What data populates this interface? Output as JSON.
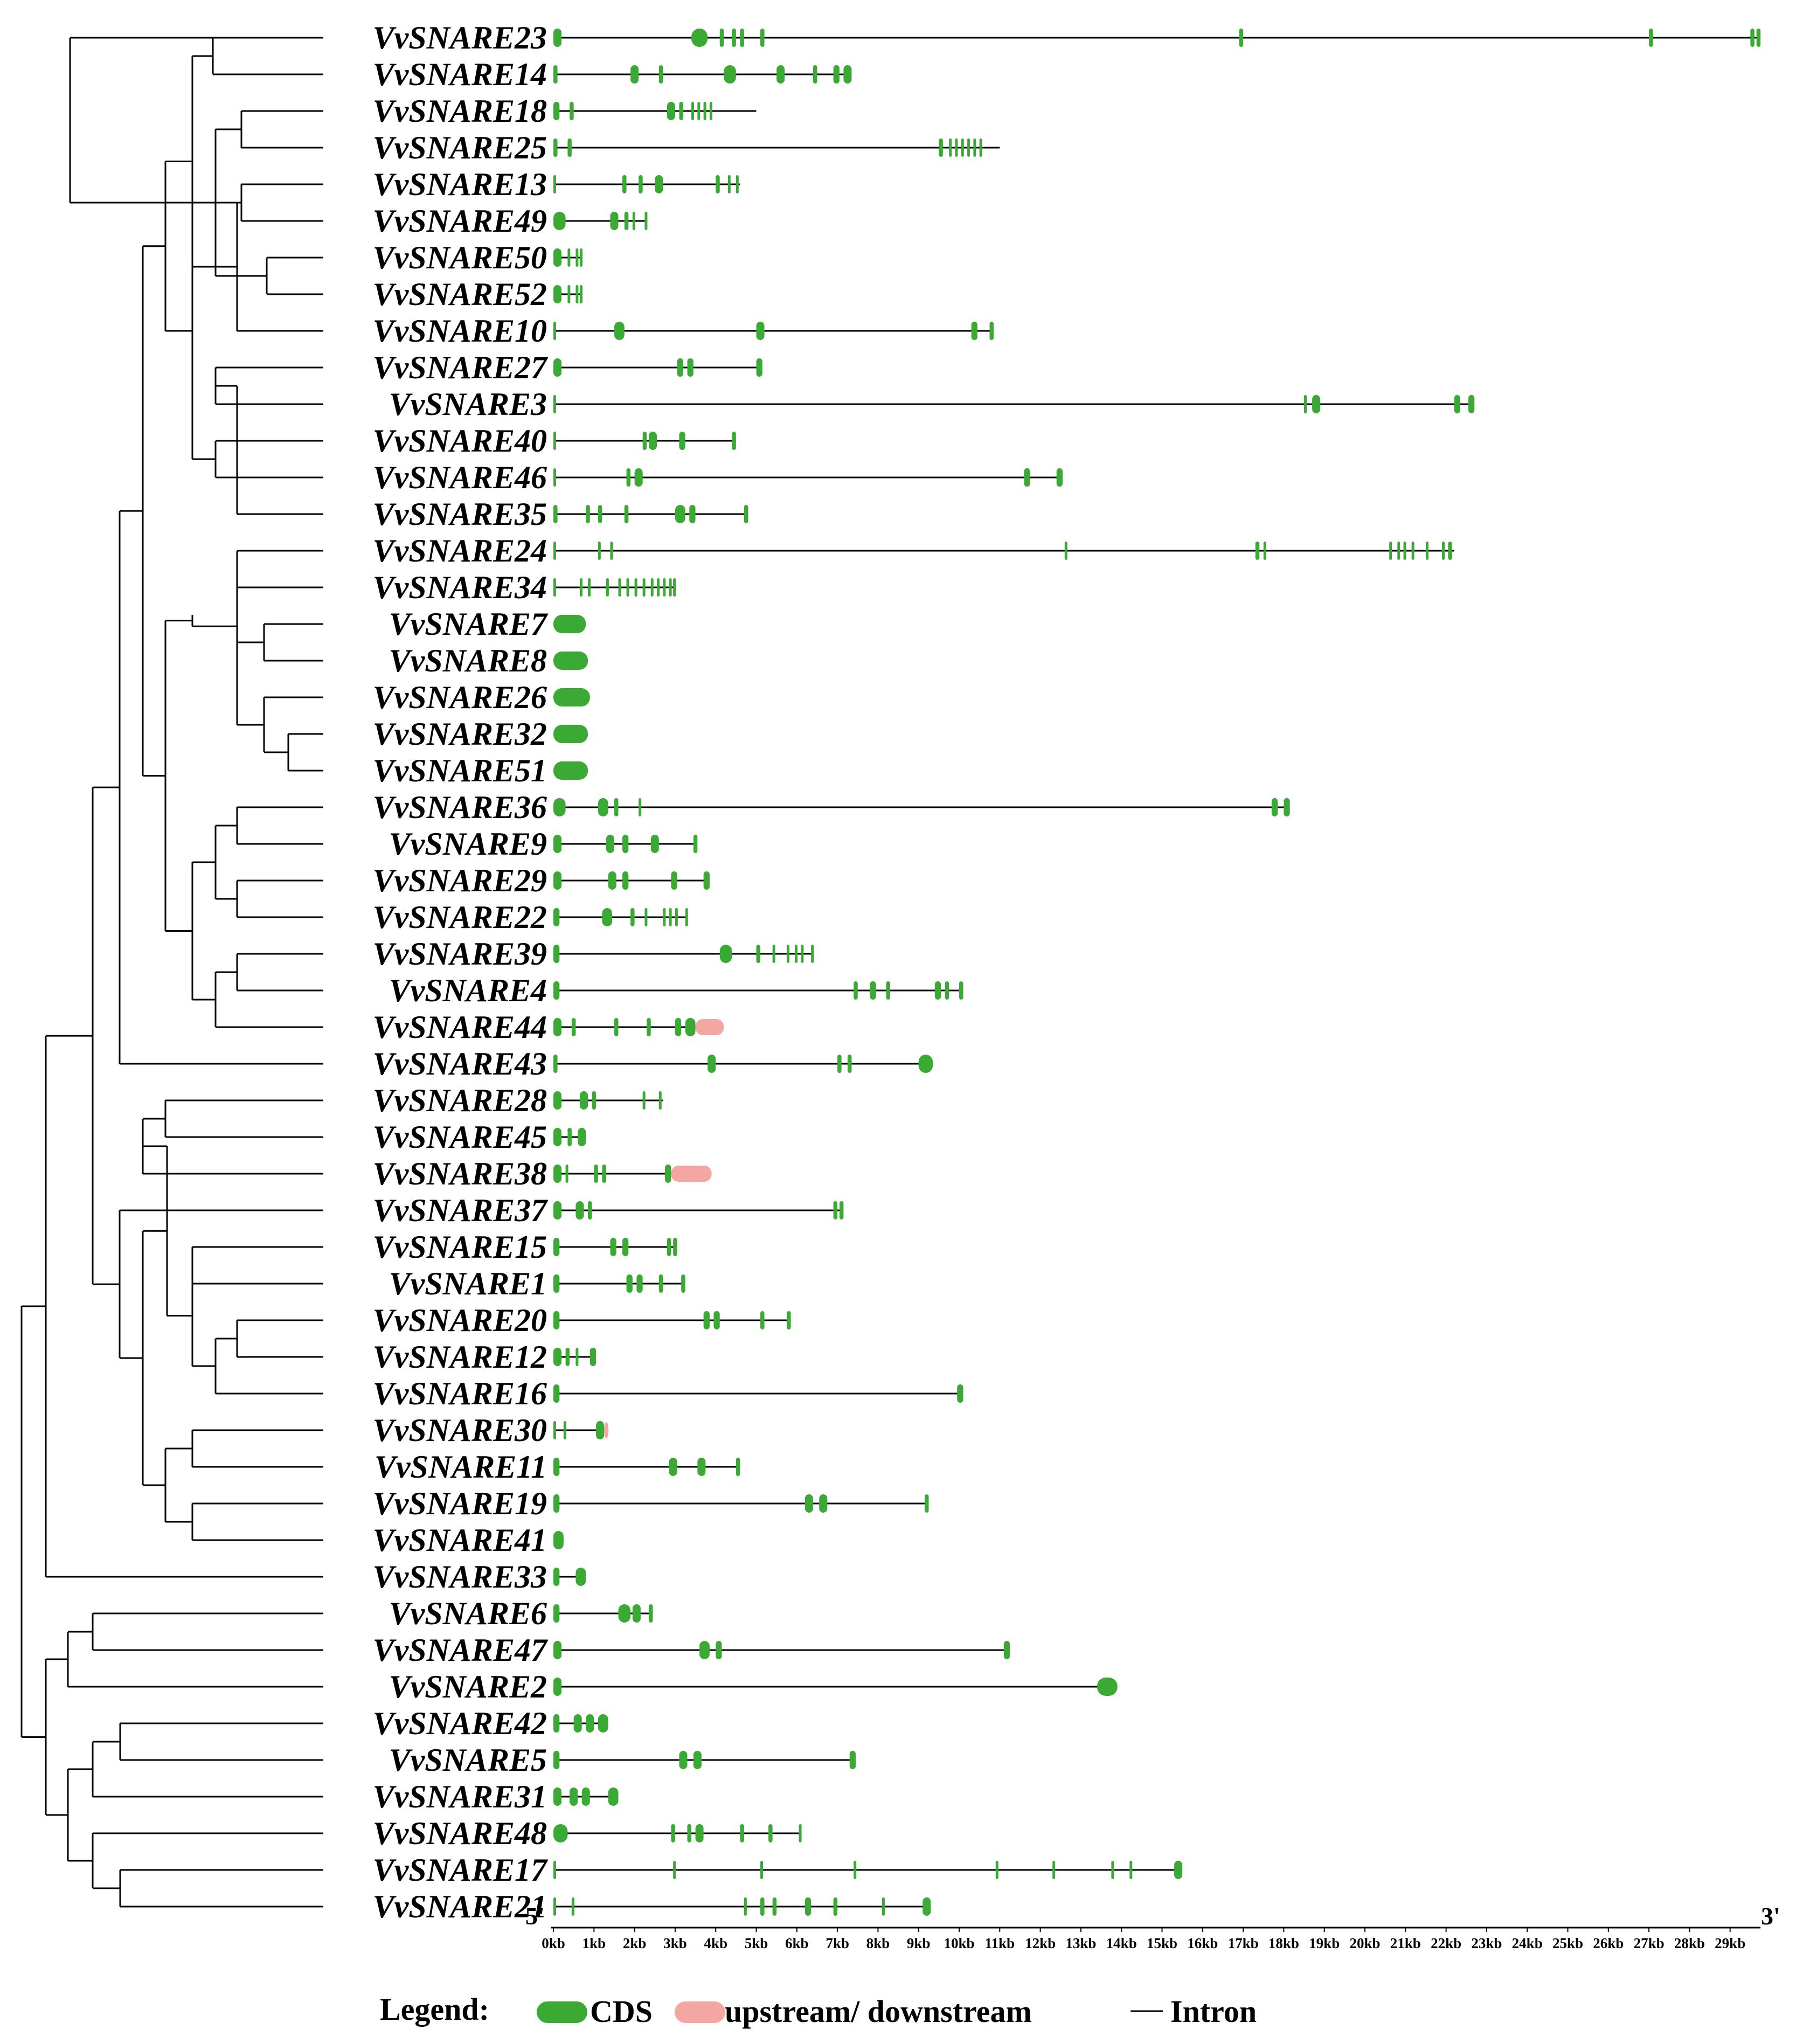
{
  "colors": {
    "cds": "#3aaa35",
    "utr": "#f4a6a2",
    "line": "#000000"
  },
  "end_labels": {
    "five": "5'",
    "three": "3'"
  },
  "axis_ticks": [
    "0kb",
    "1kb",
    "2kb",
    "3kb",
    "4kb",
    "5kb",
    "6kb",
    "7kb",
    "8kb",
    "9kb",
    "10kb",
    "11kb",
    "12kb",
    "13kb",
    "14kb",
    "15kb",
    "16kb",
    "17kb",
    "18kb",
    "19kb",
    "20kb",
    "21kb",
    "22kb",
    "23kb",
    "24kb",
    "25kb",
    "26kb",
    "27kb",
    "28kb",
    "29kb"
  ],
  "legend": {
    "title": "Legend:",
    "cds": "CDS",
    "utr": "upstream/ downstream",
    "intron": "Intron"
  },
  "genes": [
    {
      "name": "VvSNARE23",
      "length": 29.7,
      "cds": [
        [
          0,
          0.2
        ],
        [
          3.4,
          3.8
        ],
        [
          4.1,
          4.2
        ],
        [
          4.4,
          4.5
        ],
        [
          4.6,
          4.7
        ],
        [
          5.1,
          5.2
        ],
        [
          16.9,
          17.0
        ],
        [
          27.0,
          27.1
        ],
        [
          29.5,
          29.6
        ],
        [
          29.65,
          29.75
        ]
      ],
      "utr": []
    },
    {
      "name": "VvSNARE14",
      "length": 7.3,
      "cds": [
        [
          0,
          0.1
        ],
        [
          1.9,
          2.1
        ],
        [
          2.6,
          2.7
        ],
        [
          4.2,
          4.5
        ],
        [
          5.5,
          5.7
        ],
        [
          6.4,
          6.5
        ],
        [
          6.9,
          7.05
        ],
        [
          7.15,
          7.35
        ]
      ],
      "utr": []
    },
    {
      "name": "VvSNARE18",
      "length": 5.0,
      "cds": [
        [
          0,
          0.15
        ],
        [
          0.4,
          0.5
        ],
        [
          2.8,
          3.0
        ],
        [
          3.1,
          3.2
        ],
        [
          3.4,
          3.45
        ],
        [
          3.55,
          3.6
        ],
        [
          3.7,
          3.75
        ],
        [
          3.85,
          3.9
        ]
      ],
      "utr": []
    },
    {
      "name": "VvSNARE25",
      "length": 11.0,
      "cds": [
        [
          0,
          0.1
        ],
        [
          0.35,
          0.45
        ],
        [
          9.5,
          9.6
        ],
        [
          9.75,
          9.8
        ],
        [
          9.9,
          9.95
        ],
        [
          10.05,
          10.1
        ],
        [
          10.2,
          10.25
        ],
        [
          10.35,
          10.4
        ],
        [
          10.5,
          10.55
        ]
      ],
      "utr": []
    },
    {
      "name": "VvSNARE13",
      "length": 4.6,
      "cds": [
        [
          0,
          0.05
        ],
        [
          1.7,
          1.8
        ],
        [
          2.1,
          2.2
        ],
        [
          2.5,
          2.7
        ],
        [
          4.0,
          4.1
        ],
        [
          4.3,
          4.35
        ],
        [
          4.5,
          4.55
        ]
      ],
      "utr": []
    },
    {
      "name": "VvSNARE49",
      "length": 2.3,
      "cds": [
        [
          0,
          0.3
        ],
        [
          1.4,
          1.6
        ],
        [
          1.75,
          1.85
        ],
        [
          1.95,
          2.0
        ],
        [
          2.25,
          2.3
        ]
      ],
      "utr": []
    },
    {
      "name": "VvSNARE50",
      "length": 0.7,
      "cds": [
        [
          0,
          0.2
        ],
        [
          0.35,
          0.4
        ],
        [
          0.55,
          0.6
        ],
        [
          0.65,
          0.7
        ]
      ],
      "utr": []
    },
    {
      "name": "VvSNARE52",
      "length": 0.7,
      "cds": [
        [
          0,
          0.2
        ],
        [
          0.35,
          0.4
        ],
        [
          0.55,
          0.6
        ],
        [
          0.65,
          0.7
        ]
      ],
      "utr": []
    },
    {
      "name": "VvSNARE10",
      "length": 10.8,
      "cds": [
        [
          0,
          0.05
        ],
        [
          1.5,
          1.75
        ],
        [
          5.0,
          5.2
        ],
        [
          10.3,
          10.45
        ],
        [
          10.75,
          10.85
        ]
      ],
      "utr": []
    },
    {
      "name": "VvSNARE27",
      "length": 5.1,
      "cds": [
        [
          0,
          0.2
        ],
        [
          3.05,
          3.2
        ],
        [
          3.3,
          3.45
        ],
        [
          5.0,
          5.15
        ]
      ],
      "utr": []
    },
    {
      "name": "VvSNARE3",
      "length": 22.6,
      "cds": [
        [
          0,
          0.05
        ],
        [
          18.5,
          18.55
        ],
        [
          18.7,
          18.9
        ],
        [
          22.2,
          22.35
        ],
        [
          22.55,
          22.7
        ]
      ],
      "utr": []
    },
    {
      "name": "VvSNARE40",
      "length": 4.5,
      "cds": [
        [
          0,
          0.05
        ],
        [
          2.2,
          2.3
        ],
        [
          2.35,
          2.55
        ],
        [
          3.1,
          3.25
        ],
        [
          4.4,
          4.5
        ]
      ],
      "utr": []
    },
    {
      "name": "VvSNARE46",
      "length": 12.5,
      "cds": [
        [
          0,
          0.05
        ],
        [
          1.8,
          1.9
        ],
        [
          2.0,
          2.2
        ],
        [
          11.6,
          11.75
        ],
        [
          12.4,
          12.55
        ]
      ],
      "utr": []
    },
    {
      "name": "VvSNARE35",
      "length": 4.8,
      "cds": [
        [
          0,
          0.1
        ],
        [
          0.8,
          0.9
        ],
        [
          1.1,
          1.2
        ],
        [
          1.75,
          1.85
        ],
        [
          3.0,
          3.25
        ],
        [
          3.35,
          3.5
        ],
        [
          4.7,
          4.8
        ]
      ],
      "utr": []
    },
    {
      "name": "VvSNARE24",
      "length": 22.2,
      "cds": [
        [
          0,
          0.05
        ],
        [
          1.1,
          1.15
        ],
        [
          1.4,
          1.45
        ],
        [
          12.6,
          12.65
        ],
        [
          17.3,
          17.4
        ],
        [
          17.5,
          17.55
        ],
        [
          20.6,
          20.65
        ],
        [
          20.8,
          20.85
        ],
        [
          20.95,
          21.0
        ],
        [
          21.15,
          21.2
        ],
        [
          21.5,
          21.55
        ],
        [
          21.9,
          21.95
        ],
        [
          22.05,
          22.15
        ]
      ],
      "utr": []
    },
    {
      "name": "VvSNARE34",
      "length": 3.0,
      "cds": [
        [
          0,
          0.05
        ],
        [
          0.65,
          0.7
        ],
        [
          0.85,
          0.9
        ],
        [
          1.3,
          1.35
        ],
        [
          1.6,
          1.65
        ],
        [
          1.8,
          1.85
        ],
        [
          2.0,
          2.05
        ],
        [
          2.2,
          2.25
        ],
        [
          2.4,
          2.45
        ],
        [
          2.55,
          2.6
        ],
        [
          2.7,
          2.75
        ],
        [
          2.85,
          2.9
        ],
        [
          2.95,
          3.0
        ]
      ],
      "utr": []
    },
    {
      "name": "VvSNARE7",
      "length": 0.8,
      "cds": [
        [
          0,
          0.8
        ]
      ],
      "utr": []
    },
    {
      "name": "VvSNARE8",
      "length": 0.85,
      "cds": [
        [
          0,
          0.85
        ]
      ],
      "utr": []
    },
    {
      "name": "VvSNARE26",
      "length": 0.9,
      "cds": [
        [
          0,
          0.9
        ]
      ],
      "utr": []
    },
    {
      "name": "VvSNARE32",
      "length": 0.85,
      "cds": [
        [
          0,
          0.85
        ]
      ],
      "utr": []
    },
    {
      "name": "VvSNARE51",
      "length": 0.85,
      "cds": [
        [
          0,
          0.85
        ]
      ],
      "utr": []
    },
    {
      "name": "VvSNARE36",
      "length": 18.1,
      "cds": [
        [
          0,
          0.3
        ],
        [
          1.1,
          1.35
        ],
        [
          1.5,
          1.6
        ],
        [
          2.1,
          2.15
        ],
        [
          17.7,
          17.85
        ],
        [
          18.0,
          18.15
        ]
      ],
      "utr": []
    },
    {
      "name": "VvSNARE9",
      "length": 3.5,
      "cds": [
        [
          0,
          0.2
        ],
        [
          1.3,
          1.5
        ],
        [
          1.7,
          1.85
        ],
        [
          2.4,
          2.6
        ],
        [
          3.45,
          3.55
        ]
      ],
      "utr": []
    },
    {
      "name": "VvSNARE29",
      "length": 3.8,
      "cds": [
        [
          0,
          0.2
        ],
        [
          1.35,
          1.55
        ],
        [
          1.7,
          1.85
        ],
        [
          2.9,
          3.05
        ],
        [
          3.7,
          3.85
        ]
      ],
      "utr": []
    },
    {
      "name": "VvSNARE22",
      "length": 3.3,
      "cds": [
        [
          0,
          0.15
        ],
        [
          1.2,
          1.45
        ],
        [
          1.9,
          2.0
        ],
        [
          2.25,
          2.3
        ],
        [
          2.7,
          2.75
        ],
        [
          2.85,
          2.9
        ],
        [
          3.0,
          3.05
        ],
        [
          3.25,
          3.3
        ]
      ],
      "utr": []
    },
    {
      "name": "VvSNARE39",
      "length": 6.4,
      "cds": [
        [
          0,
          0.15
        ],
        [
          4.1,
          4.4
        ],
        [
          5.0,
          5.1
        ],
        [
          5.4,
          5.45
        ],
        [
          5.75,
          5.8
        ],
        [
          5.95,
          6.0
        ],
        [
          6.1,
          6.15
        ],
        [
          6.35,
          6.4
        ]
      ],
      "utr": []
    },
    {
      "name": "VvSNARE4",
      "length": 10.1,
      "cds": [
        [
          0,
          0.15
        ],
        [
          7.4,
          7.5
        ],
        [
          7.8,
          7.95
        ],
        [
          8.2,
          8.3
        ],
        [
          9.4,
          9.55
        ],
        [
          9.65,
          9.75
        ],
        [
          10.0,
          10.1
        ]
      ],
      "utr": []
    },
    {
      "name": "VvSNARE44",
      "length": 3.5,
      "cds": [
        [
          0,
          0.2
        ],
        [
          0.45,
          0.55
        ],
        [
          1.5,
          1.6
        ],
        [
          2.3,
          2.4
        ],
        [
          3.0,
          3.15
        ],
        [
          3.25,
          3.5
        ]
      ],
      "utr": [
        [
          3.5,
          4.2
        ]
      ]
    },
    {
      "name": "VvSNARE43",
      "length": 9.3,
      "cds": [
        [
          0,
          0.1
        ],
        [
          3.8,
          4.0
        ],
        [
          7.0,
          7.1
        ],
        [
          7.25,
          7.35
        ],
        [
          9.0,
          9.35
        ]
      ],
      "utr": []
    },
    {
      "name": "VvSNARE28",
      "length": 2.7,
      "cds": [
        [
          0,
          0.2
        ],
        [
          0.65,
          0.85
        ],
        [
          0.95,
          1.05
        ],
        [
          2.2,
          2.25
        ],
        [
          2.6,
          2.65
        ]
      ],
      "utr": []
    },
    {
      "name": "VvSNARE45",
      "length": 0.8,
      "cds": [
        [
          0,
          0.2
        ],
        [
          0.35,
          0.45
        ],
        [
          0.6,
          0.8
        ]
      ],
      "utr": []
    },
    {
      "name": "VvSNARE38",
      "length": 2.9,
      "cds": [
        [
          0,
          0.2
        ],
        [
          0.3,
          0.35
        ],
        [
          1.0,
          1.1
        ],
        [
          1.2,
          1.3
        ],
        [
          2.75,
          2.9
        ]
      ],
      "utr": [
        [
          2.9,
          3.9
        ]
      ]
    },
    {
      "name": "VvSNARE37",
      "length": 7.1,
      "cds": [
        [
          0,
          0.2
        ],
        [
          0.55,
          0.75
        ],
        [
          0.85,
          0.95
        ],
        [
          6.9,
          7.0
        ],
        [
          7.05,
          7.15
        ]
      ],
      "utr": []
    },
    {
      "name": "VvSNARE15",
      "length": 3.0,
      "cds": [
        [
          0,
          0.15
        ],
        [
          1.4,
          1.55
        ],
        [
          1.7,
          1.85
        ],
        [
          2.8,
          2.9
        ],
        [
          2.95,
          3.05
        ]
      ],
      "utr": []
    },
    {
      "name": "VvSNARE1",
      "length": 3.2,
      "cds": [
        [
          0,
          0.15
        ],
        [
          1.8,
          1.95
        ],
        [
          2.05,
          2.2
        ],
        [
          2.6,
          2.7
        ],
        [
          3.15,
          3.25
        ]
      ],
      "utr": []
    },
    {
      "name": "VvSNARE20",
      "length": 5.8,
      "cds": [
        [
          0,
          0.15
        ],
        [
          3.7,
          3.85
        ],
        [
          3.95,
          4.1
        ],
        [
          5.1,
          5.2
        ],
        [
          5.75,
          5.85
        ]
      ],
      "utr": []
    },
    {
      "name": "VvSNARE12",
      "length": 1.0,
      "cds": [
        [
          0,
          0.2
        ],
        [
          0.3,
          0.4
        ],
        [
          0.55,
          0.6
        ],
        [
          0.9,
          1.05
        ]
      ],
      "utr": []
    },
    {
      "name": "VvSNARE16",
      "length": 10.0,
      "cds": [
        [
          0,
          0.15
        ],
        [
          9.95,
          10.1
        ]
      ],
      "utr": []
    },
    {
      "name": "VvSNARE30",
      "length": 1.2,
      "cds": [
        [
          0,
          0.05
        ],
        [
          0.25,
          0.3
        ],
        [
          1.05,
          1.25
        ]
      ],
      "utr": [
        [
          1.25,
          1.35
        ]
      ]
    },
    {
      "name": "VvSNARE11",
      "length": 4.6,
      "cds": [
        [
          0,
          0.15
        ],
        [
          2.85,
          3.05
        ],
        [
          3.55,
          3.75
        ],
        [
          4.5,
          4.6
        ]
      ],
      "utr": []
    },
    {
      "name": "VvSNARE19",
      "length": 9.2,
      "cds": [
        [
          0,
          0.15
        ],
        [
          6.2,
          6.4
        ],
        [
          6.55,
          6.75
        ],
        [
          9.15,
          9.25
        ]
      ],
      "utr": []
    },
    {
      "name": "VvSNARE41",
      "length": 0.25,
      "cds": [
        [
          0,
          0.25
        ]
      ],
      "utr": []
    },
    {
      "name": "VvSNARE33",
      "length": 0.7,
      "cds": [
        [
          0,
          0.15
        ],
        [
          0.55,
          0.8
        ]
      ],
      "utr": []
    },
    {
      "name": "VvSNARE6",
      "length": 2.4,
      "cds": [
        [
          0,
          0.15
        ],
        [
          1.6,
          1.9
        ],
        [
          1.95,
          2.15
        ],
        [
          2.35,
          2.45
        ]
      ],
      "utr": []
    },
    {
      "name": "VvSNARE47",
      "length": 11.2,
      "cds": [
        [
          0,
          0.2
        ],
        [
          3.6,
          3.85
        ],
        [
          4.0,
          4.15
        ],
        [
          11.1,
          11.25
        ]
      ],
      "utr": []
    },
    {
      "name": "VvSNARE2",
      "length": 13.8,
      "cds": [
        [
          0,
          0.2
        ],
        [
          13.4,
          13.9
        ]
      ],
      "utr": []
    },
    {
      "name": "VvSNARE42",
      "length": 1.3,
      "cds": [
        [
          0,
          0.15
        ],
        [
          0.5,
          0.7
        ],
        [
          0.8,
          1.0
        ],
        [
          1.1,
          1.35
        ]
      ],
      "utr": []
    },
    {
      "name": "VvSNARE5",
      "length": 7.4,
      "cds": [
        [
          0,
          0.15
        ],
        [
          3.1,
          3.3
        ],
        [
          3.45,
          3.65
        ],
        [
          7.3,
          7.45
        ]
      ],
      "utr": []
    },
    {
      "name": "VvSNARE31",
      "length": 1.6,
      "cds": [
        [
          0,
          0.2
        ],
        [
          0.4,
          0.6
        ],
        [
          0.7,
          0.9
        ],
        [
          1.35,
          1.6
        ]
      ],
      "utr": []
    },
    {
      "name": "VvSNARE48",
      "length": 6.1,
      "cds": [
        [
          0,
          0.35
        ],
        [
          2.9,
          3.0
        ],
        [
          3.3,
          3.4
        ],
        [
          3.5,
          3.7
        ],
        [
          4.6,
          4.7
        ],
        [
          5.3,
          5.4
        ],
        [
          6.05,
          6.1
        ]
      ],
      "utr": []
    },
    {
      "name": "VvSNARE17",
      "length": 15.5,
      "cds": [
        [
          0,
          0.05
        ],
        [
          2.95,
          3.0
        ],
        [
          5.1,
          5.15
        ],
        [
          7.4,
          7.45
        ],
        [
          10.9,
          10.95
        ],
        [
          12.3,
          12.35
        ],
        [
          13.75,
          13.8
        ],
        [
          14.2,
          14.25
        ],
        [
          15.3,
          15.5
        ]
      ],
      "utr": []
    },
    {
      "name": "VvSNARE21",
      "length": 9.3,
      "cds": [
        [
          0,
          0.05
        ],
        [
          0.45,
          0.5
        ],
        [
          4.7,
          4.75
        ],
        [
          5.1,
          5.2
        ],
        [
          5.4,
          5.5
        ],
        [
          6.2,
          6.35
        ],
        [
          6.9,
          7.0
        ],
        [
          8.1,
          8.15
        ],
        [
          9.1,
          9.3
        ]
      ],
      "utr": []
    }
  ]
}
